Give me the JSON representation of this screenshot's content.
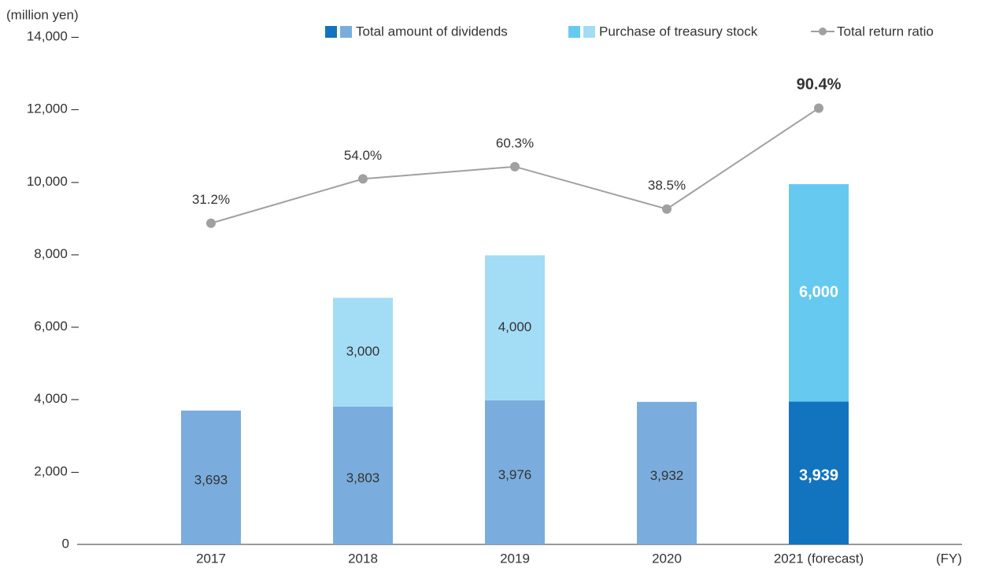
{
  "chart_data": {
    "type": "bar",
    "stacked": true,
    "y_axis_label": "(million yen)",
    "x_axis_label": "(FY)",
    "categories": [
      "2017",
      "2018",
      "2019",
      "2020",
      "2021 (forecast)"
    ],
    "highlight_index": 4,
    "ylim": [
      0,
      14000
    ],
    "yticks": [
      0,
      {
        "value": 2000,
        "label": "2,000 –"
      },
      {
        "value": 4000,
        "label": "4,000 –"
      },
      {
        "value": 6000,
        "label": "6,000 –"
      },
      {
        "value": 8000,
        "label": "8,000 –"
      },
      {
        "value": 10000,
        "label": "10,000 –"
      },
      {
        "value": 12000,
        "label": "12,000 –"
      },
      {
        "value": 14000,
        "label": "14,000 –"
      }
    ],
    "y2lim": [
      -134,
      127
    ],
    "series": [
      {
        "name": "Total amount of dividends",
        "type": "bar",
        "color": "#7aaddd",
        "highlight_color": "#1273bf",
        "values": [
          3693,
          3803,
          3976,
          3932,
          3939
        ],
        "value_labels": [
          "3,693",
          "3,803",
          "3,976",
          "3,932",
          "3,939"
        ]
      },
      {
        "name": "Purchase of treasury stock",
        "type": "bar",
        "color": "#a3dcf5",
        "highlight_color": "#66c9f0",
        "values": [
          null,
          3000,
          4000,
          null,
          6000
        ],
        "value_labels": [
          null,
          "3,000",
          "4,000",
          null,
          "6,000"
        ]
      },
      {
        "name": "Total return ratio",
        "type": "line",
        "axis": "y2",
        "color": "#a0a0a0",
        "values": [
          31.2,
          54.0,
          60.3,
          38.5,
          90.4
        ],
        "value_labels": [
          "31.2%",
          "54.0%",
          "60.3%",
          "38.5%",
          "90.4%"
        ]
      }
    ]
  }
}
